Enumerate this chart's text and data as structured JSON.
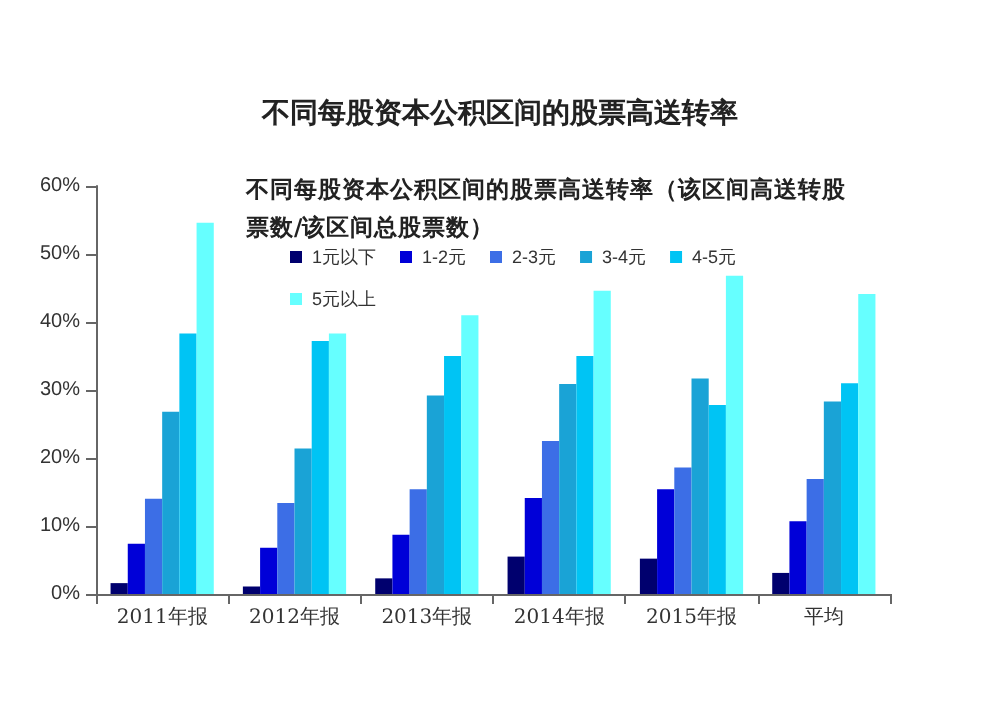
{
  "chart_data": {
    "type": "bar",
    "title": "不同每股资本公积区间的股票高送转率",
    "subtitle": "不同每股资本公积区间的股票高送转率（该区间高送转股票数/该区间总股票数）",
    "categories": [
      "2011年报",
      "2012年报",
      "2013年报",
      "2014年报",
      "2015年报",
      "平均"
    ],
    "series": [
      {
        "name": "1元以下",
        "color": "#00006e",
        "values": [
          1.6,
          1.1,
          2.3,
          5.5,
          5.2,
          3.1
        ]
      },
      {
        "name": "1-2元",
        "color": "#0000d8",
        "values": [
          7.4,
          6.8,
          8.7,
          14.1,
          15.4,
          10.7
        ]
      },
      {
        "name": "2-3元",
        "color": "#3c6ee6",
        "values": [
          14.0,
          13.4,
          15.4,
          22.5,
          18.6,
          16.9
        ]
      },
      {
        "name": "3-4元",
        "color": "#1aa3d6",
        "values": [
          26.8,
          21.4,
          29.2,
          30.9,
          31.7,
          28.3
        ]
      },
      {
        "name": "4-5元",
        "color": "#00c4f4",
        "values": [
          38.3,
          37.2,
          35,
          35,
          27.8,
          31
        ]
      },
      {
        "name": "5元以上",
        "color": "#66ffff",
        "values": [
          54.6,
          38.3,
          41,
          44.6,
          46.8,
          44.1
        ]
      }
    ],
    "ylim": [
      0,
      60
    ],
    "yticks": [
      {
        "value": 0,
        "label": "0%"
      },
      {
        "value": 10,
        "label": "10%"
      },
      {
        "value": 20,
        "label": "20%"
      },
      {
        "value": 30,
        "label": "30%"
      },
      {
        "value": 40,
        "label": "40%"
      },
      {
        "value": 50,
        "label": "50%"
      },
      {
        "value": 60,
        "label": "60%"
      }
    ],
    "grid": false,
    "legend": "top"
  }
}
